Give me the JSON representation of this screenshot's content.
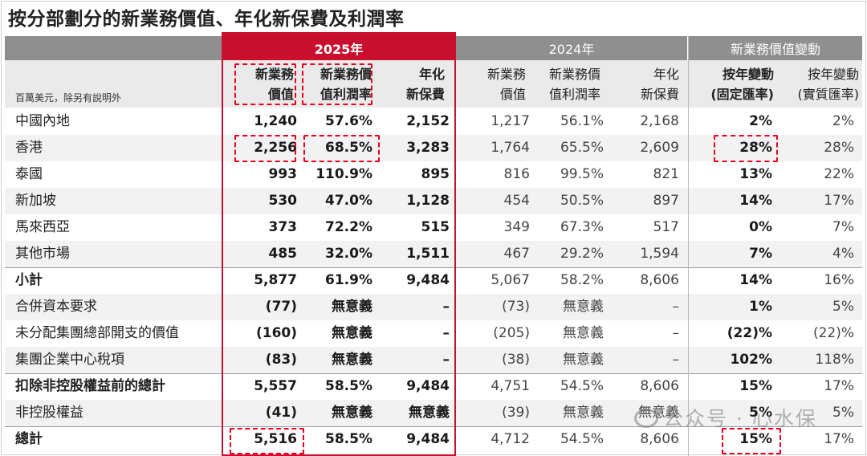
{
  "title": "按分部劃分的新業務價值、年化新保費及利潤率",
  "unit_note": "百萬美元，除另有說明外",
  "group_headers": {
    "y2025": "2025年",
    "y2024": "2024年",
    "vonb_change": "新業務價值變動"
  },
  "col_headers": {
    "vonb_2025": [
      "新業務",
      "價值"
    ],
    "margin_2025": [
      "新業務價",
      "值利潤率"
    ],
    "ape_2025": [
      "年化",
      "新保費"
    ],
    "vonb_2024": [
      "新業務",
      "價值"
    ],
    "margin_2024": [
      "新業務價",
      "值利潤率"
    ],
    "ape_2024": [
      "年化",
      "新保費"
    ],
    "yoy_fixed": [
      "按年變動",
      "(固定匯率)"
    ],
    "yoy_actual": [
      "按年變動",
      "(實質匯率)"
    ]
  },
  "rows": [
    {
      "label": "中國內地",
      "v25": "1,240",
      "m25": "57.6%",
      "a25": "2,152",
      "v24": "1,217",
      "m24": "56.1%",
      "a24": "2,168",
      "cf": "2%",
      "ca": "2%"
    },
    {
      "label": "香港",
      "v25": "2,256",
      "m25": "68.5%",
      "a25": "3,283",
      "v24": "1,764",
      "m24": "65.5%",
      "a24": "2,609",
      "cf": "28%",
      "ca": "28%"
    },
    {
      "label": "泰國",
      "v25": "993",
      "m25": "110.9%",
      "a25": "895",
      "v24": "816",
      "m24": "99.5%",
      "a24": "821",
      "cf": "13%",
      "ca": "22%"
    },
    {
      "label": "新加坡",
      "v25": "530",
      "m25": "47.0%",
      "a25": "1,128",
      "v24": "454",
      "m24": "50.5%",
      "a24": "897",
      "cf": "14%",
      "ca": "17%"
    },
    {
      "label": "馬來西亞",
      "v25": "373",
      "m25": "72.2%",
      "a25": "515",
      "v24": "349",
      "m24": "67.3%",
      "a24": "517",
      "cf": "0%",
      "ca": "7%"
    },
    {
      "label": "其他市場",
      "v25": "485",
      "m25": "32.0%",
      "a25": "1,511",
      "v24": "467",
      "m24": "29.2%",
      "a24": "1,594",
      "cf": "7%",
      "ca": "4%"
    },
    {
      "label": "小計",
      "v25": "5,877",
      "m25": "61.9%",
      "a25": "9,484",
      "v24": "5,067",
      "m24": "58.2%",
      "a24": "8,606",
      "cf": "14%",
      "ca": "16%"
    },
    {
      "label": "合併資本要求",
      "v25": "(77)",
      "m25": "無意義",
      "a25": "–",
      "v24": "(73)",
      "m24": "無意義",
      "a24": "–",
      "cf": "1%",
      "ca": "5%"
    },
    {
      "label": "未分配集團總部開支的價值",
      "v25": "(160)",
      "m25": "無意義",
      "a25": "–",
      "v24": "(205)",
      "m24": "無意義",
      "a24": "–",
      "cf": "(22)%",
      "ca": "(22)%"
    },
    {
      "label": "集團企業中心稅項",
      "v25": "(83)",
      "m25": "無意義",
      "a25": "–",
      "v24": "(38)",
      "m24": "無意義",
      "a24": "–",
      "cf": "102%",
      "ca": "118%"
    },
    {
      "label": "扣除非控股權益前的總計",
      "v25": "5,557",
      "m25": "58.5%",
      "a25": "9,484",
      "v24": "4,751",
      "m24": "54.5%",
      "a24": "8,606",
      "cf": "15%",
      "ca": "17%"
    },
    {
      "label": "非控股權益",
      "v25": "(41)",
      "m25": "無意義",
      "a25": "無意義",
      "v24": "(39)",
      "m24": "無意義",
      "a24": "無意義",
      "cf": "5%",
      "ca": "5%"
    },
    {
      "label": "總計",
      "v25": "5,516",
      "m25": "58.5%",
      "a25": "9,484",
      "v24": "4,712",
      "m24": "54.5%",
      "a24": "8,606",
      "cf": "15%",
      "ca": "17%"
    }
  ],
  "watermark": "公众号 · 心水保"
}
